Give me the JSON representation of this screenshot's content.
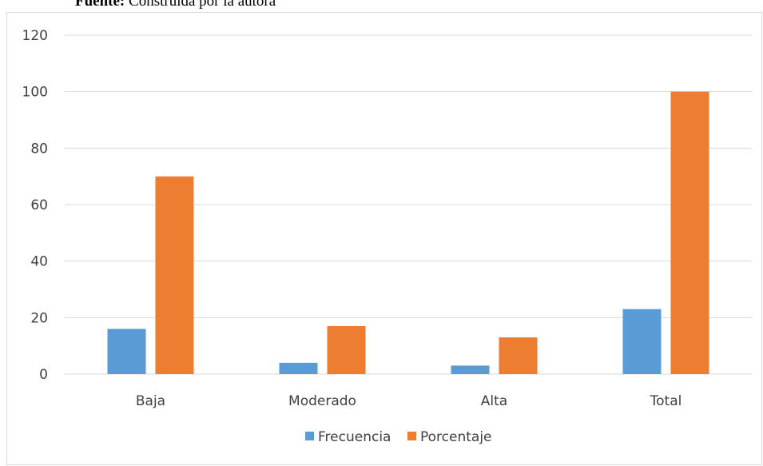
{
  "caption": {
    "label": "Fuente:",
    "text": " Construida por la autora"
  },
  "colors": {
    "frecuencia": "#5b9bd5",
    "porcentaje": "#ed7d31",
    "gridline": "#d9d9d9",
    "axis_text": "#404040"
  },
  "chart_data": {
    "type": "bar",
    "title": "",
    "xlabel": "",
    "ylabel": "",
    "categories": [
      "Baja",
      "Moderado",
      "Alta",
      "Total"
    ],
    "series": [
      {
        "name": "Frecuencia",
        "values": [
          16,
          4,
          3,
          23
        ]
      },
      {
        "name": "Porcentaje",
        "values": [
          70,
          17,
          13,
          100
        ]
      }
    ],
    "ylim": [
      0,
      120
    ],
    "yticks": [
      0,
      20,
      40,
      60,
      80,
      100,
      120
    ],
    "grid": true,
    "legend_position": "bottom"
  }
}
